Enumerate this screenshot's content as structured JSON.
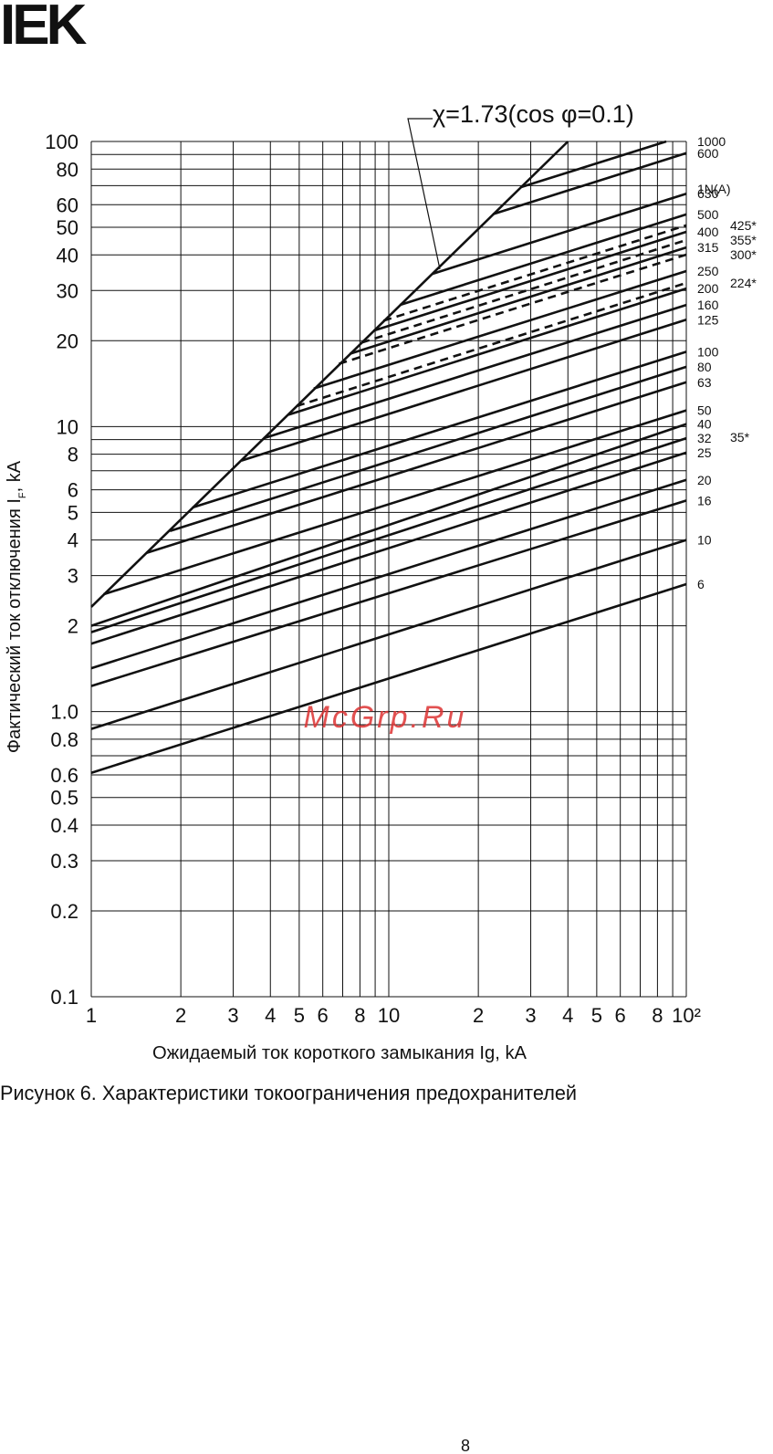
{
  "header": {
    "logo": "IEK"
  },
  "chart_data": {
    "type": "line",
    "xlog": true,
    "ylog": true,
    "color": "#111111",
    "xlim": [
      1,
      100
    ],
    "ylim": [
      0.1,
      100
    ],
    "xticks": [
      1,
      2,
      3,
      4,
      5,
      6,
      8,
      10,
      {
        "value": 20,
        "label": "2"
      },
      {
        "value": 30,
        "label": "3"
      },
      {
        "value": 40,
        "label": "4"
      },
      {
        "value": 50,
        "label": "5"
      },
      {
        "value": 60,
        "label": "6"
      },
      {
        "value": 80,
        "label": "8"
      },
      {
        "value": 100,
        "label": "10²"
      }
    ],
    "xminor": [
      7,
      9,
      70,
      90
    ],
    "yticks": [
      0.1,
      0.2,
      0.3,
      0.4,
      0.5,
      0.6,
      0.8,
      {
        "value": 1,
        "label": "1.0"
      },
      2,
      3,
      4,
      5,
      6,
      8,
      10,
      20,
      30,
      40,
      50,
      60,
      80,
      100
    ],
    "yminor": [
      0.7,
      0.9,
      7,
      9,
      70,
      90
    ],
    "x_label": "Ожидаемый ток короткого замыкания Ig, kA",
    "y_label": "Фактический ток отключения I",
    "y_label_sub": "F",
    "y_label_end": ", kA",
    "annotation": "χ=1.73(cos φ=0.1)",
    "label_header": "1N(A)",
    "note_labels": [
      "35*"
    ],
    "envelope": {
      "x": [
        1,
        40
      ],
      "values": [
        2.33,
        100
      ]
    },
    "series": [
      {
        "name": "1000",
        "x": [
          27.7,
          85.6
        ],
        "values": [
          69,
          100
        ],
        "dashed": false
      },
      {
        "name": "600",
        "x": [
          22.4,
          100
        ],
        "values": [
          55.6,
          91
        ],
        "dashed": false
      },
      {
        "name": "630",
        "x": [
          14.0,
          100
        ],
        "values": [
          34.3,
          65.6
        ],
        "dashed": false
      },
      {
        "name": "500",
        "x": [
          10.9,
          100
        ],
        "values": [
          26.7,
          55.5
        ],
        "dashed": false
      },
      {
        "name": "425*",
        "x": [
          9.6,
          100
        ],
        "values": [
          23.5,
          50.8
        ],
        "dashed": true
      },
      {
        "name": "400",
        "x": [
          8.9,
          100
        ],
        "values": [
          21.7,
          48.2
        ],
        "dashed": false
      },
      {
        "name": "355*",
        "x": [
          8.1,
          100
        ],
        "values": [
          19.7,
          45.1
        ],
        "dashed": true
      },
      {
        "name": "315",
        "x": [
          7.4,
          100
        ],
        "values": [
          18.0,
          42.5
        ],
        "dashed": false
      },
      {
        "name": "300*",
        "x": [
          6.8,
          100
        ],
        "values": [
          16.6,
          40.1
        ],
        "dashed": true
      },
      {
        "name": "250",
        "x": [
          5.6,
          100
        ],
        "values": [
          13.6,
          35.1
        ],
        "dashed": false
      },
      {
        "name": "224*",
        "x": [
          4.9,
          100
        ],
        "values": [
          11.8,
          31.9
        ],
        "dashed": true
      },
      {
        "name": "200",
        "x": [
          4.6,
          100
        ],
        "values": [
          11.0,
          30.5
        ],
        "dashed": false
      },
      {
        "name": "160",
        "x": [
          3.8,
          100
        ],
        "values": [
          9.1,
          26.7
        ],
        "dashed": false
      },
      {
        "name": "125",
        "x": [
          3.2,
          100
        ],
        "values": [
          7.6,
          23.7
        ],
        "dashed": false
      },
      {
        "name": "100",
        "x": [
          2.19,
          100
        ],
        "values": [
          5.2,
          18.3
        ],
        "dashed": false
      },
      {
        "name": "80",
        "x": [
          1.84,
          100
        ],
        "values": [
          4.3,
          16.2
        ],
        "dashed": false
      },
      {
        "name": "63",
        "x": [
          1.53,
          100
        ],
        "values": [
          3.6,
          14.3
        ],
        "dashed": false
      },
      {
        "name": "50",
        "x": [
          1.1,
          100
        ],
        "values": [
          2.58,
          11.4
        ],
        "dashed": false
      },
      {
        "name": "40",
        "x": [
          1,
          100
        ],
        "values": [
          2.0,
          10.2
        ],
        "dashed": false
      },
      {
        "name": "32",
        "x": [
          1,
          100
        ],
        "values": [
          1.9,
          9.1
        ],
        "dashed": false
      },
      {
        "name": "25",
        "x": [
          1,
          100
        ],
        "values": [
          1.73,
          8.1
        ],
        "dashed": false
      },
      {
        "name": "20",
        "x": [
          1,
          100
        ],
        "values": [
          1.42,
          6.5
        ],
        "dashed": false
      },
      {
        "name": "16",
        "x": [
          1,
          100
        ],
        "values": [
          1.23,
          5.5
        ],
        "dashed": false
      },
      {
        "name": "10",
        "x": [
          1,
          100
        ],
        "values": [
          0.87,
          4.0
        ],
        "dashed": false
      },
      {
        "name": "6",
        "x": [
          1,
          100
        ],
        "values": [
          0.61,
          2.8
        ],
        "dashed": false
      }
    ]
  },
  "watermark": "McGrp.Ru",
  "caption": "Рисунок 6. Характеристики токоограничения предохранителей",
  "page_number": "8"
}
